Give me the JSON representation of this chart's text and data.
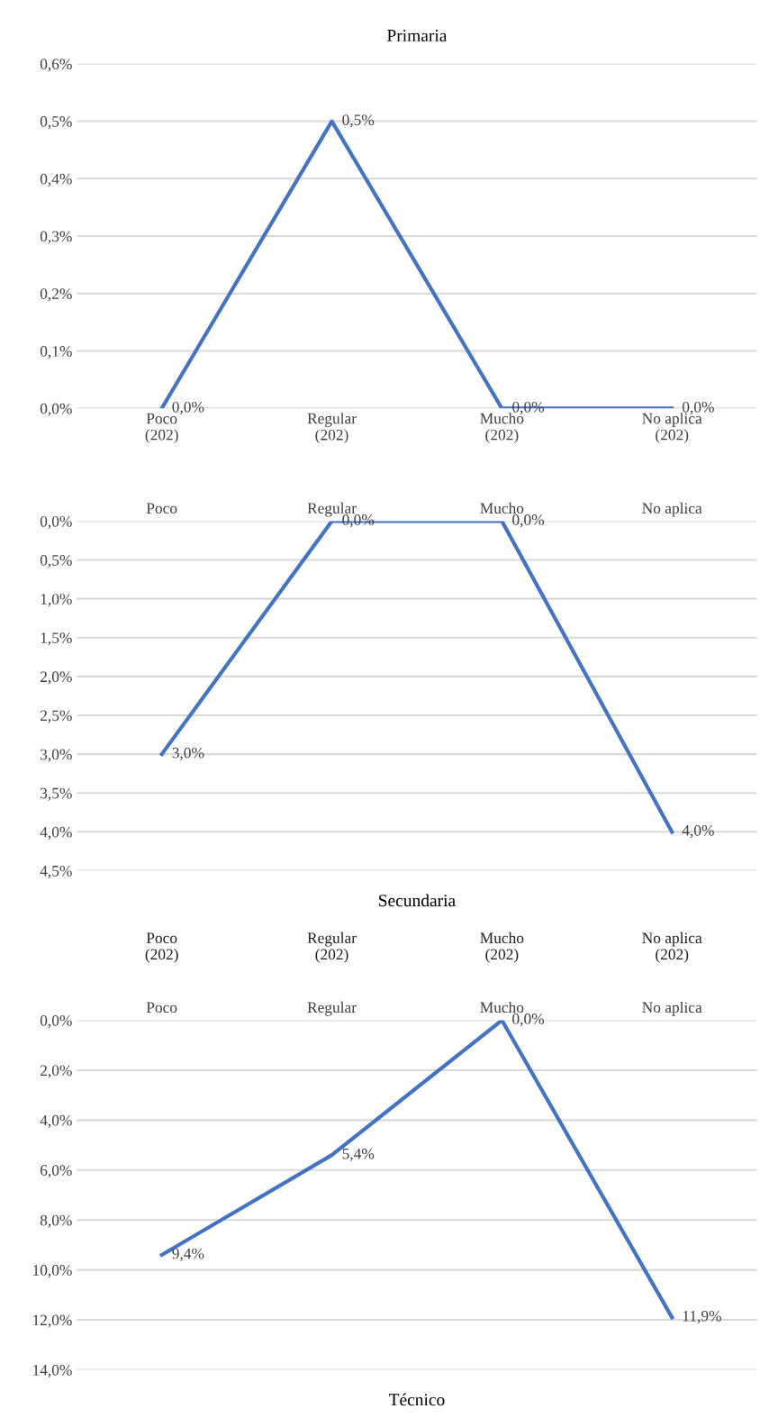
{
  "chart_data": [
    {
      "type": "line",
      "title": "Primaria",
      "categories": [
        "Poco\n(202)",
        "Regular\n(202)",
        "Mucho\n(202)",
        "No aplica\n(202)"
      ],
      "series": [
        {
          "color": "#4472c4",
          "values": [
            0.0,
            0.5,
            0.0,
            0.0
          ],
          "value_labels": [
            "0,0%",
            "0,5%",
            "0,0%",
            "0,0%"
          ]
        }
      ],
      "ylim": [
        0,
        0.6
      ],
      "yticks": [
        {
          "value": 0,
          "label": "0,0%"
        },
        {
          "value": 0.1,
          "label": "0,1%"
        },
        {
          "value": 0.2,
          "label": "0,2%"
        },
        {
          "value": 0.3,
          "label": "0,3%"
        },
        {
          "value": 0.4,
          "label": "0,4%"
        },
        {
          "value": 0.5,
          "label": "0,5%"
        },
        {
          "value": 0.6,
          "label": "0,6%"
        }
      ],
      "grid": "y",
      "legend": false,
      "marker": "none",
      "line_style": "solid"
    },
    {
      "type": "line",
      "title": "Secundaria",
      "categories": [
        "Poco",
        "Regular",
        "Mucho",
        "No aplica"
      ],
      "series": [
        {
          "color": "#4472c4",
          "values": [
            3.0,
            0.0,
            0.0,
            4.0
          ],
          "value_labels": [
            "3,0%",
            "0,0%",
            "0,0%",
            "4,0%"
          ]
        }
      ],
      "ylim": [
        4.5,
        0
      ],
      "yticks": [
        {
          "value": 0,
          "label": "0,0%"
        },
        {
          "value": 0.5,
          "label": "0,5%"
        },
        {
          "value": 1,
          "label": "1,0%"
        },
        {
          "value": 1.5,
          "label": "1,5%"
        },
        {
          "value": 2,
          "label": "2,0%"
        },
        {
          "value": 2.5,
          "label": "2,5%"
        },
        {
          "value": 3,
          "label": "3,0%"
        },
        {
          "value": 3.5,
          "label": "3,5%"
        },
        {
          "value": 4,
          "label": "4,0%"
        },
        {
          "value": 4.5,
          "label": "4,5%"
        }
      ],
      "annotations": [
        "Poco\n(202)",
        "Regular\n(202)",
        "Mucho\n(202)",
        "No aplica\n(202)"
      ],
      "grid": "y",
      "legend": false,
      "marker": "none",
      "line_style": "solid"
    },
    {
      "type": "line",
      "title": "Técnico",
      "categories": [
        "Poco",
        "Regular",
        "Mucho",
        "No aplica"
      ],
      "series": [
        {
          "color": "#4472c4",
          "values": [
            9.4,
            5.4,
            0.0,
            11.9
          ],
          "value_labels": [
            "9,4%",
            "5,4%",
            "0,0%",
            "11,9%"
          ]
        }
      ],
      "ylim": [
        14,
        0
      ],
      "yticks": [
        {
          "value": 0,
          "label": "0,0%"
        },
        {
          "value": 2,
          "label": "2,0%"
        },
        {
          "value": 4,
          "label": "4,0%"
        },
        {
          "value": 6,
          "label": "6,0%"
        },
        {
          "value": 8,
          "label": "8,0%"
        },
        {
          "value": 10,
          "label": "10,0%"
        },
        {
          "value": 12,
          "label": "12,0%"
        },
        {
          "value": 14,
          "label": "14,0%"
        }
      ],
      "grid": "y",
      "legend": false,
      "marker": "none",
      "line_style": "solid"
    }
  ]
}
